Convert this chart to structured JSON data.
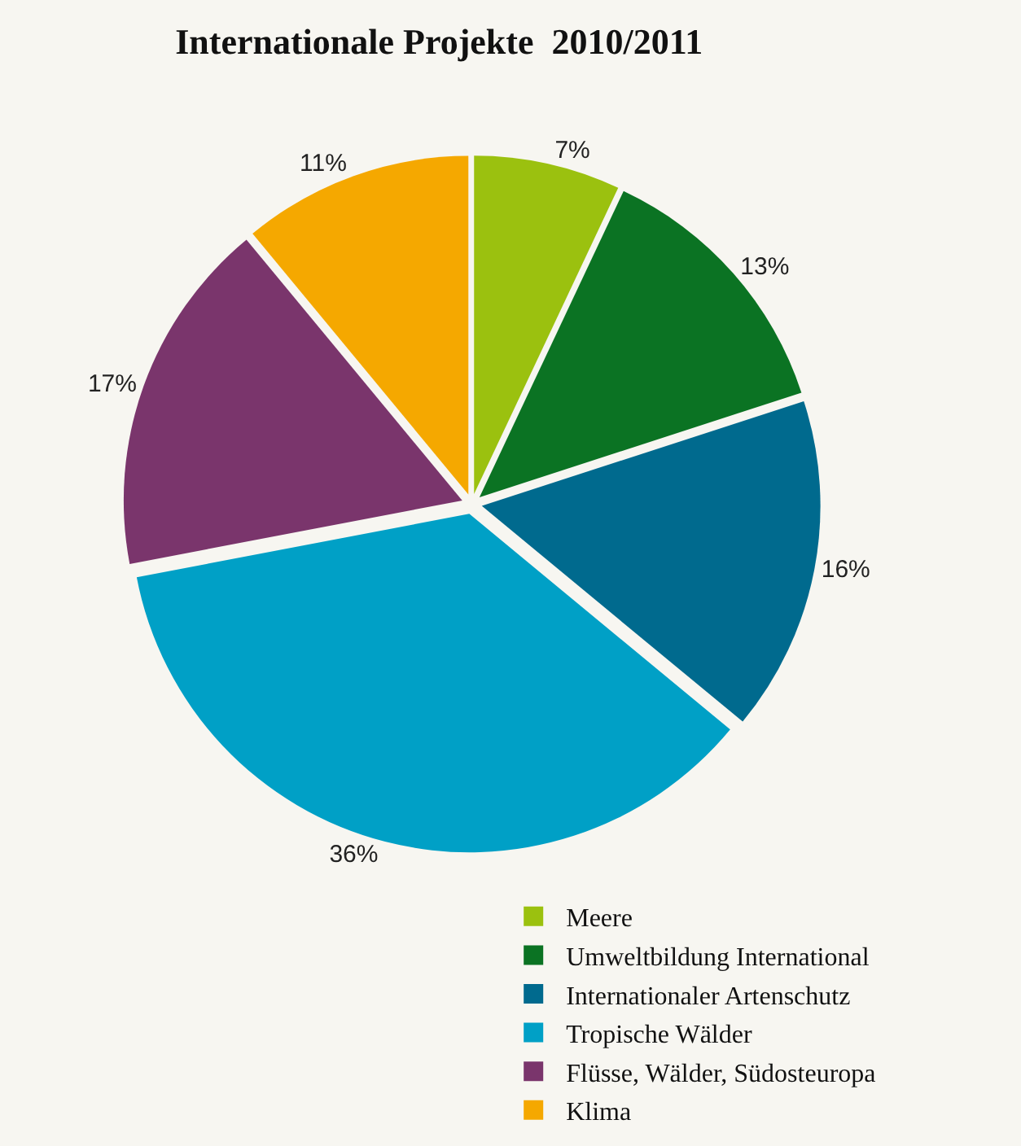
{
  "chart_data": {
    "type": "pie",
    "title": "Internationale Projekte  2010/2011",
    "categories": [
      "Meere",
      "Umweltbildung International",
      "Internationaler Artenschutz",
      "Tropische Wälder",
      "Flüsse, Wälder, Südosteuropa",
      "Klima"
    ],
    "values": [
      7,
      13,
      16,
      36,
      17,
      11
    ],
    "value_labels": [
      "7%",
      "13%",
      "16%",
      "36%",
      "17%",
      "11%"
    ],
    "colors": [
      "#9bc10f",
      "#0b7323",
      "#006a8e",
      "#00a0c6",
      "#7a356c",
      "#f5a800"
    ],
    "legend": "bottom"
  }
}
